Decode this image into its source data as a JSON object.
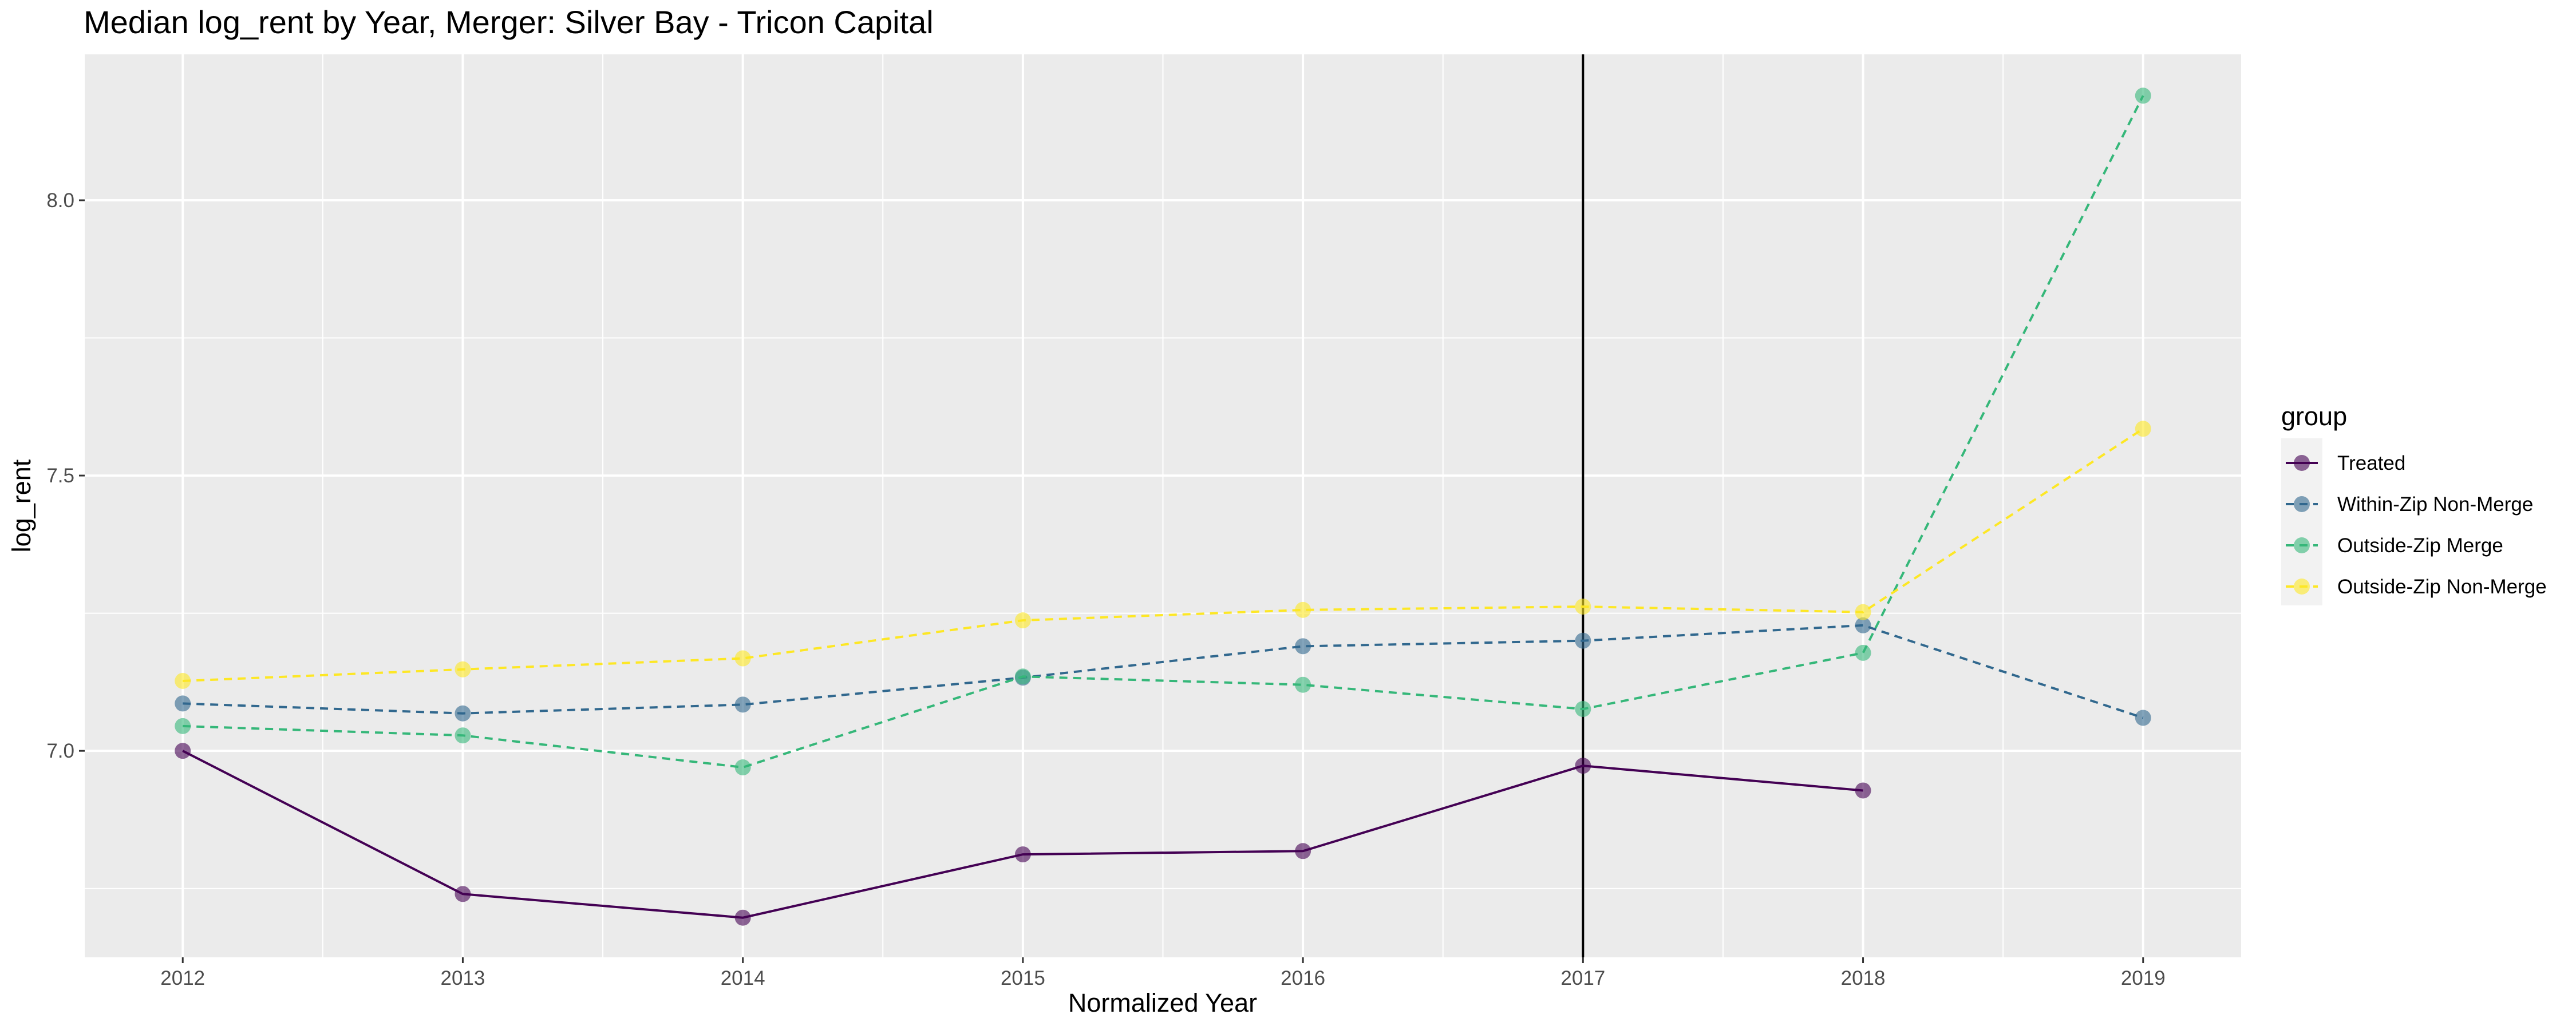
{
  "chart_data": {
    "type": "line",
    "title": "Median log_rent by Year, Merger: Silver Bay - Tricon Capital",
    "xlabel": "Normalized Year",
    "ylabel": "log_rent",
    "x": [
      2012,
      2013,
      2014,
      2015,
      2016,
      2017,
      2018,
      2019
    ],
    "x_tick_labels": [
      "2012",
      "2013",
      "2014",
      "2015",
      "2016",
      "2017",
      "2018",
      "2019"
    ],
    "y_ticks": [
      7.0,
      7.5,
      8.0
    ],
    "y_tick_labels": [
      "7.0",
      "7.5",
      "8.0"
    ],
    "xlim": [
      2011.65,
      2019.35
    ],
    "ylim": [
      6.625,
      8.265
    ],
    "vline_x": 2017,
    "grid": true,
    "legend": {
      "title": "group",
      "position": "right"
    },
    "series": [
      {
        "name": "Treated",
        "color": "#440154",
        "dashed": false,
        "x": [
          2012,
          2013,
          2014,
          2015,
          2016,
          2017,
          2018
        ],
        "values": [
          7.0,
          6.74,
          6.697,
          6.812,
          6.818,
          6.973,
          6.928
        ]
      },
      {
        "name": "Within-Zip Non-Merge",
        "color": "#31688E",
        "dashed": true,
        "x": [
          2012,
          2013,
          2014,
          2015,
          2016,
          2017,
          2018,
          2019
        ],
        "values": [
          7.086,
          7.068,
          7.084,
          7.133,
          7.19,
          7.2,
          7.228,
          7.06
        ]
      },
      {
        "name": "Outside-Zip Merge",
        "color": "#35B779",
        "dashed": true,
        "x": [
          2012,
          2013,
          2014,
          2015,
          2016,
          2017,
          2018,
          2019
        ],
        "values": [
          7.045,
          7.028,
          6.97,
          7.135,
          7.12,
          7.076,
          7.178,
          8.19
        ]
      },
      {
        "name": "Outside-Zip Non-Merge",
        "color": "#FDE725",
        "dashed": true,
        "x": [
          2012,
          2013,
          2014,
          2015,
          2016,
          2017,
          2018,
          2019
        ],
        "values": [
          7.127,
          7.148,
          7.168,
          7.237,
          7.256,
          7.262,
          7.252,
          7.585
        ]
      }
    ]
  }
}
